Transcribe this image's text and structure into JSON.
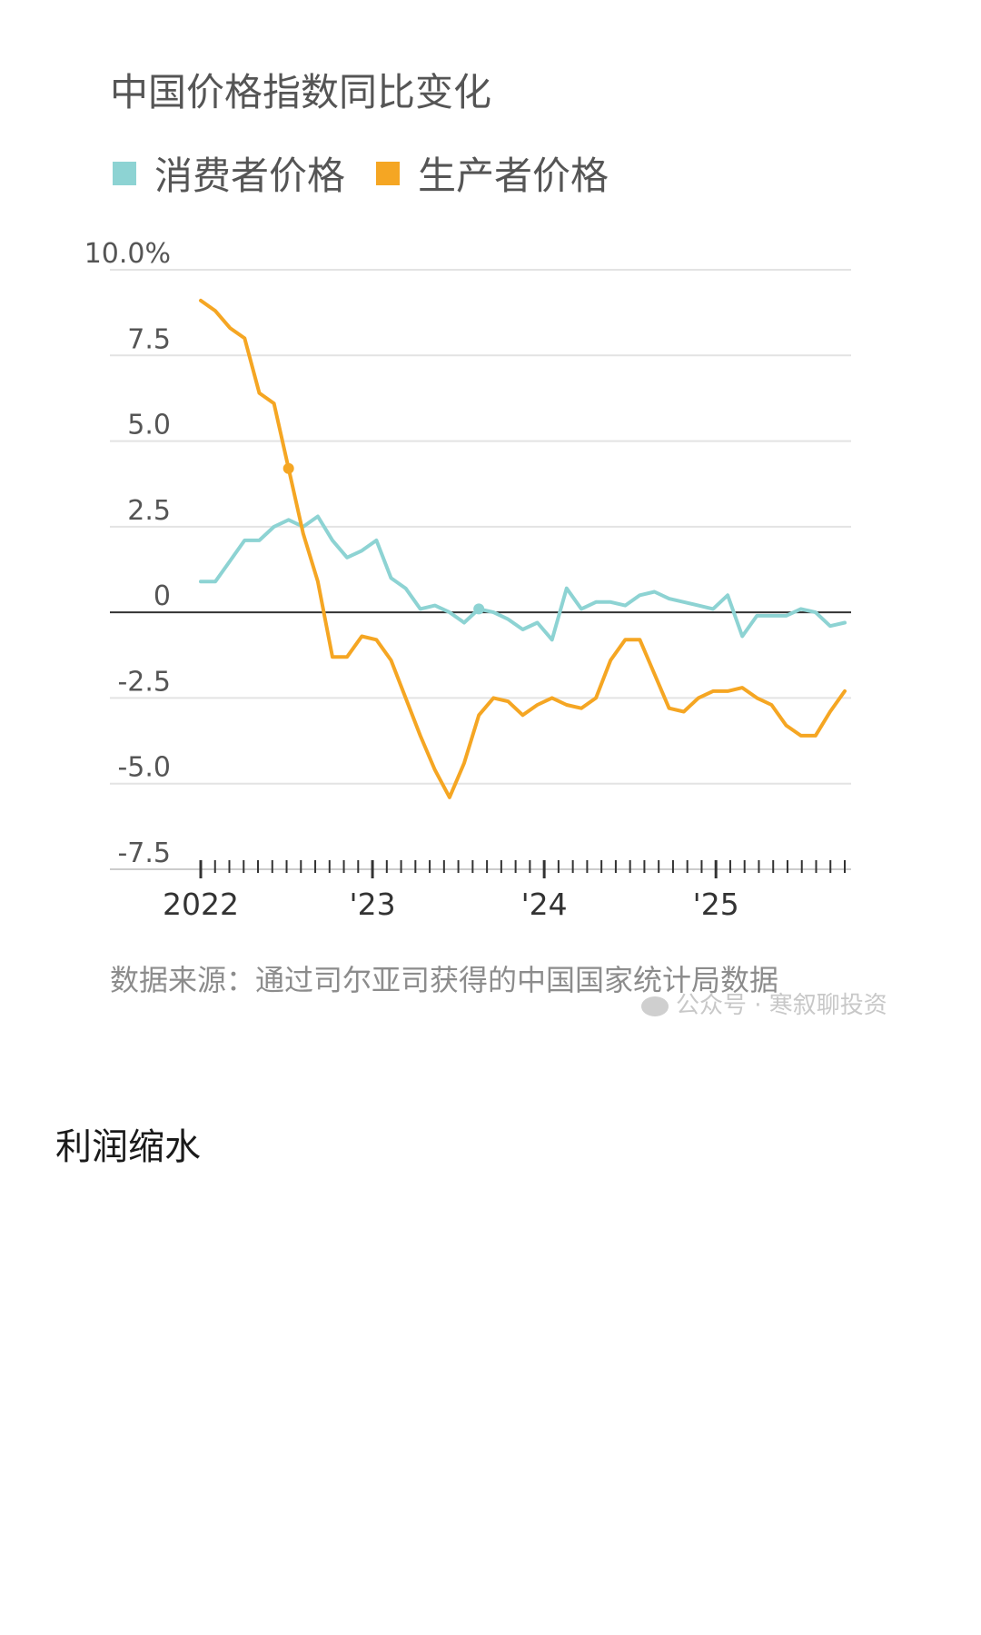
{
  "title": "中国价格指数同比变化",
  "legend": [
    {
      "label": "消费者价格",
      "color": "#8dd3d3"
    },
    {
      "label": "生产者价格",
      "color": "#f5a623"
    }
  ],
  "source": "数据来源：通过司尔亚司获得的中国国家统计局数据",
  "watermark": "公众号 · 寒叙聊投资",
  "section_heading": "利润缩水",
  "chart_data": {
    "type": "line",
    "title": "中国价格指数同比变化",
    "ylim": [
      -7.5,
      10
    ],
    "y_ticks": [
      10,
      7.5,
      5,
      2.5,
      0,
      -2.5,
      -5,
      -7.5
    ],
    "y_tick_labels": [
      "10.0%",
      "7.5",
      "5.0",
      "2.5",
      "0",
      "-2.5",
      "-5.0",
      "-7.5"
    ],
    "x_start": 2022.0,
    "x_end": 2025.75,
    "x_ticks": [
      2022,
      2023,
      2024,
      2025
    ],
    "x_tick_labels": [
      "2022",
      "'23",
      "'24",
      "'25"
    ],
    "series": [
      {
        "name": "消费者价格",
        "color": "#8dd3d3",
        "values": [
          0.9,
          0.9,
          1.5,
          2.1,
          2.1,
          2.5,
          2.7,
          2.5,
          2.8,
          2.1,
          1.6,
          1.8,
          2.1,
          1.0,
          0.7,
          0.1,
          0.2,
          0.0,
          -0.3,
          0.1,
          0.0,
          -0.2,
          -0.5,
          -0.3,
          -0.8,
          0.7,
          0.1,
          0.3,
          0.3,
          0.2,
          0.5,
          0.6,
          0.4,
          0.3,
          0.2,
          0.1,
          0.5,
          -0.7,
          -0.1,
          -0.1,
          -0.1,
          0.1,
          0.0,
          -0.4,
          -0.3
        ]
      },
      {
        "name": "生产者价格",
        "color": "#f5a623",
        "values": [
          9.1,
          8.8,
          8.3,
          8.0,
          6.4,
          6.1,
          4.2,
          2.3,
          0.9,
          -1.3,
          -1.3,
          -0.7,
          -0.8,
          -1.4,
          -2.5,
          -3.6,
          -4.6,
          -5.4,
          -4.4,
          -3.0,
          -2.5,
          -2.6,
          -3.0,
          -2.7,
          -2.5,
          -2.7,
          -2.8,
          -2.5,
          -1.4,
          -0.8,
          -0.8,
          -1.8,
          -2.8,
          -2.9,
          -2.5,
          -2.3,
          -2.3,
          -2.2,
          -2.5,
          -2.7,
          -3.3,
          -3.6,
          -3.6,
          -2.9,
          -2.3
        ]
      }
    ],
    "markers": [
      {
        "series": "生产者价格",
        "index": 6,
        "value": 4.2
      },
      {
        "series": "消费者价格",
        "index": 19,
        "value": 0.1
      }
    ]
  }
}
